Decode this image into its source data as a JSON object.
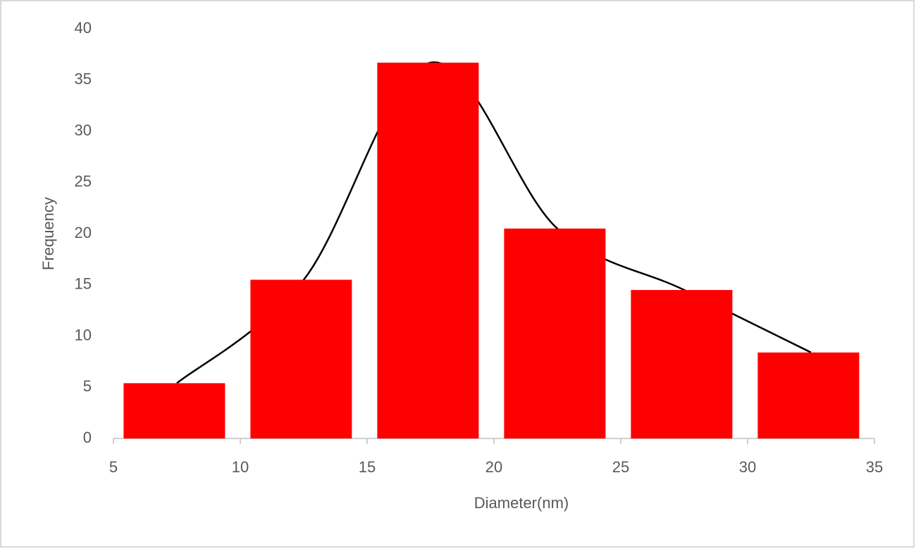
{
  "chart_data": {
    "type": "histogram",
    "x_label": "Diameter(nm)",
    "y_label": "Frequency",
    "bins": [
      5,
      10,
      15,
      20,
      25,
      30,
      35
    ],
    "values": [
      5.4,
      15.5,
      36.7,
      20.5,
      14.5,
      8.4
    ],
    "color": "#ff0000",
    "curve": {
      "type": "line",
      "smooth": true,
      "color": "#000000",
      "x": [
        7.5,
        12.5,
        17.5,
        22.5,
        27.5,
        32.5
      ],
      "values": [
        5.4,
        15.5,
        36.7,
        20.5,
        14.5,
        8.4
      ]
    },
    "xlim": [
      5,
      35
    ],
    "xticks": [
      5,
      10,
      15,
      20,
      25,
      30,
      35
    ],
    "ylim": [
      0,
      40
    ],
    "yticks": [
      0,
      5,
      10,
      15,
      20,
      25,
      30,
      35,
      40
    ],
    "grid": false
  }
}
